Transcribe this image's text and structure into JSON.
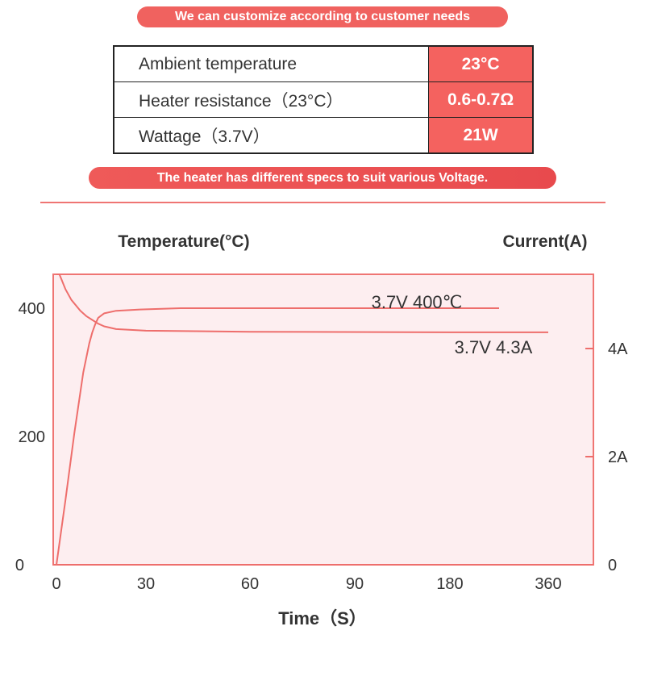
{
  "banners": {
    "top": "We can customize according to customer needs",
    "bottom": "The heater has different specs to suit various Voltage."
  },
  "specs": [
    {
      "label": "Ambient temperature",
      "value": "23°C"
    },
    {
      "label": "Heater resistance（23°C）",
      "value": "0.6-0.7Ω"
    },
    {
      "label": "Wattage（3.7V）",
      "value": "21W"
    }
  ],
  "colors": {
    "accent": "#f4625f",
    "plot_fill": "#fdeef0",
    "line": "#ee6e6c"
  },
  "chart_data": {
    "type": "line",
    "ylabel": "Temperature(°C)",
    "y2label": "Current(A)",
    "xlabel": "Time（S）",
    "x_ticks": [
      "0",
      "30",
      "60",
      "90",
      "180",
      "360"
    ],
    "y_ticks": [
      "0",
      "200",
      "400"
    ],
    "y2_ticks": [
      "0",
      "2A",
      "4A"
    ],
    "ylim": [
      0,
      450
    ],
    "y2lim": [
      0,
      5.68
    ],
    "grid": false,
    "series": [
      {
        "name": "3.7V 400℃",
        "axis": "left",
        "x": [
          0,
          3,
          6,
          9,
          11,
          12,
          13,
          14,
          16,
          20,
          28,
          40,
          70,
          180,
          270
        ],
        "y": [
          0,
          100,
          205,
          300,
          345,
          362,
          375,
          385,
          392,
          396,
          398,
          400,
          400,
          400,
          400
        ]
      },
      {
        "name": "3.7V  4.3A",
        "axis": "right",
        "x": [
          0,
          1,
          3,
          5,
          8,
          10,
          12,
          14,
          16,
          20,
          30,
          60,
          180,
          360
        ],
        "y": [
          5.68,
          5.4,
          5.1,
          4.9,
          4.7,
          4.6,
          4.53,
          4.46,
          4.41,
          4.36,
          4.33,
          4.31,
          4.3,
          4.3
        ]
      }
    ]
  }
}
